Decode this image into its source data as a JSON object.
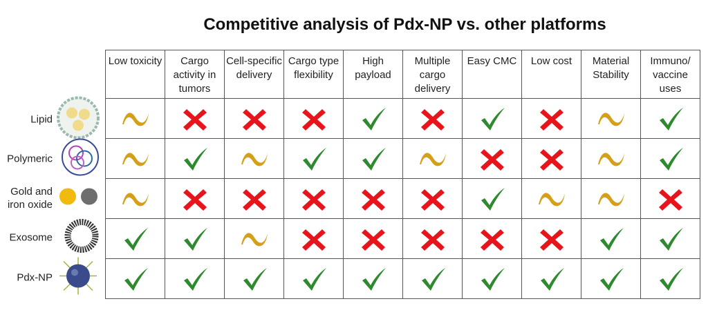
{
  "title": "Competitive analysis of Pdx-NP vs. other platforms",
  "colors": {
    "partial": "#d4a017",
    "no": "#e8141b",
    "yes": "#2f8a2f"
  },
  "columns": [
    "Low toxicity",
    "Cargo activity in tumors",
    "Cell-specific delivery",
    "Cargo type flexibility",
    "High payload",
    "Multiple cargo delivery",
    "Easy CMC",
    "Low cost",
    "Material Stability",
    "Immuno/ vaccine uses"
  ],
  "rows": [
    {
      "label": "Lipid",
      "icon": "lipid-nanoparticle-image",
      "values": [
        "partial",
        "no",
        "no",
        "no",
        "yes",
        "no",
        "yes",
        "no",
        "partial",
        "yes"
      ]
    },
    {
      "label": "Polymeric",
      "icon": "polymeric-nanoparticle-image",
      "values": [
        "partial",
        "yes",
        "partial",
        "yes",
        "yes",
        "partial",
        "no",
        "no",
        "partial",
        "yes"
      ]
    },
    {
      "label": "Gold and iron oxide",
      "icon": "gold-iron-oxide-particles-image",
      "values": [
        "partial",
        "no",
        "no",
        "no",
        "no",
        "no",
        "yes",
        "partial",
        "partial",
        "no"
      ]
    },
    {
      "label": "Exosome",
      "icon": "exosome-image",
      "values": [
        "yes",
        "yes",
        "partial",
        "no",
        "no",
        "no",
        "no",
        "no",
        "yes",
        "yes"
      ]
    },
    {
      "label": "Pdx-NP",
      "icon": "pdx-nanoparticle-image",
      "values": [
        "yes",
        "yes",
        "yes",
        "yes",
        "yes",
        "yes",
        "yes",
        "yes",
        "yes",
        "yes"
      ]
    }
  ]
}
